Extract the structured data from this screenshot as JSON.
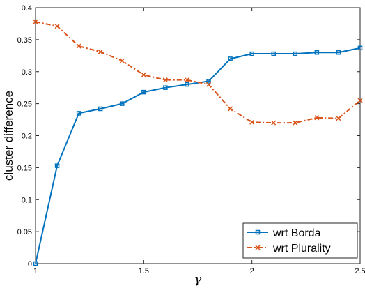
{
  "chart_data": {
    "type": "line",
    "title": "",
    "xlabel": "γ",
    "ylabel": "cluster difference",
    "xlim": [
      1,
      2.5
    ],
    "ylim": [
      0,
      0.4
    ],
    "xticks": [
      "1",
      "1.5",
      "2",
      "2.5"
    ],
    "yticks": [
      "0",
      "0.05",
      "0.1",
      "0.15",
      "0.2",
      "0.25",
      "0.3",
      "0.35",
      "0.4"
    ],
    "grid": false,
    "legend_position": "bottom-right",
    "x": [
      1.0,
      1.1,
      1.2,
      1.3,
      1.4,
      1.5,
      1.6,
      1.7,
      1.8,
      1.9,
      2.0,
      2.1,
      2.2,
      2.3,
      2.4,
      2.5
    ],
    "series": [
      {
        "name": "wrt Borda",
        "color": "#0072BD",
        "line_style": "solid",
        "marker": "square",
        "values": [
          0.0,
          0.153,
          0.235,
          0.242,
          0.25,
          0.268,
          0.275,
          0.28,
          0.285,
          0.32,
          0.328,
          0.328,
          0.328,
          0.33,
          0.33,
          0.337
        ]
      },
      {
        "name": "wrt Plurality",
        "color": "#D95319",
        "line_style": "dash-dot",
        "marker": "x",
        "values": [
          0.378,
          0.371,
          0.34,
          0.331,
          0.317,
          0.295,
          0.287,
          0.287,
          0.28,
          0.242,
          0.221,
          0.22,
          0.22,
          0.228,
          0.227,
          0.255
        ]
      }
    ]
  }
}
